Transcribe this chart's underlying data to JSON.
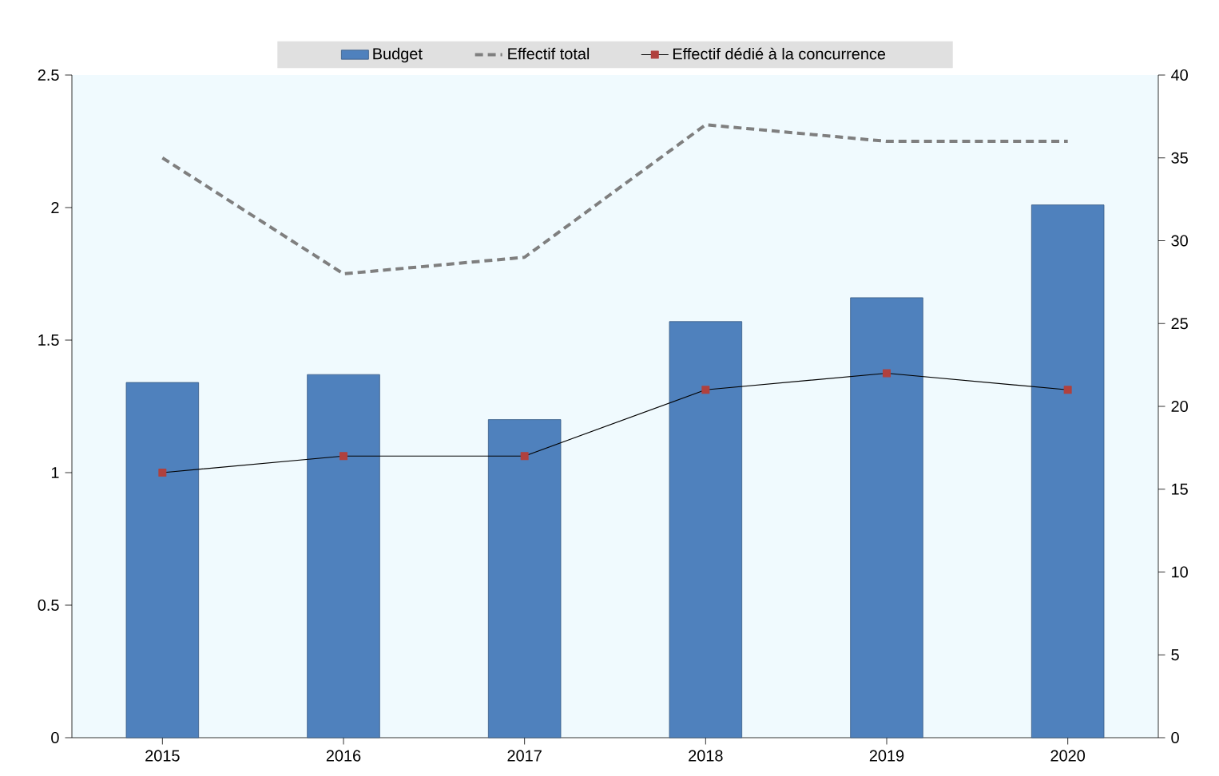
{
  "chart_data": {
    "type": "bar",
    "categories": [
      "2015",
      "2016",
      "2017",
      "2018",
      "2019",
      "2020"
    ],
    "series": [
      {
        "name": "Budget",
        "color": "#4f81bd",
        "values": [
          1.34,
          1.37,
          1.2,
          1.57,
          1.66,
          2.01
        ]
      },
      {
        "name": "Effectif total",
        "type": "line",
        "axis": "y2",
        "color": "#7f7f7f",
        "line_style": "dashed",
        "marker": "none",
        "values": [
          35,
          28,
          29,
          37,
          36,
          36
        ]
      },
      {
        "name": "Effectif dédié à la concurrence",
        "type": "line",
        "axis": "y2",
        "color": "#b0413e",
        "line_style": "solid",
        "marker": "square",
        "values": [
          16,
          17,
          17,
          21,
          22,
          21
        ]
      }
    ],
    "ylim": [
      0,
      2.5
    ],
    "yticks": [
      0,
      0.5,
      1,
      1.5,
      2,
      2.5
    ],
    "y2lim": [
      0,
      40
    ],
    "y2ticks": [
      0,
      5,
      10,
      15,
      20,
      25,
      30,
      35,
      40
    ],
    "legend": "top"
  }
}
